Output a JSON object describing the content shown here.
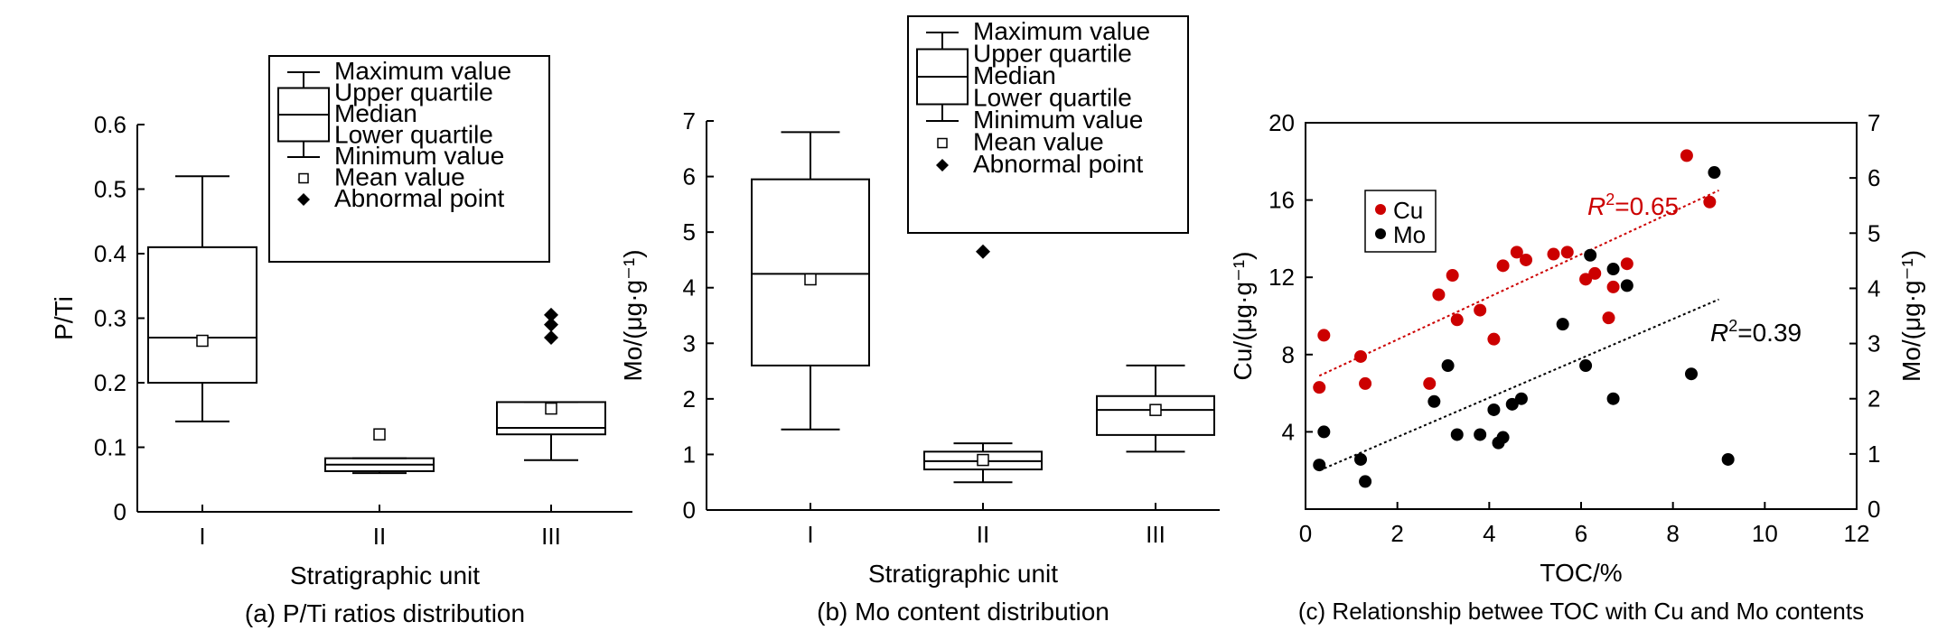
{
  "chart_data": [
    {
      "type": "box",
      "caption": "(a) P/Ti ratios distribution",
      "xlabel": "Stratigraphic unit",
      "ylabel": "P/Ti",
      "ylim": [
        0,
        0.6
      ],
      "yticks": [
        0,
        0.1,
        0.2,
        0.3,
        0.4,
        0.5,
        0.6
      ],
      "yticklabels": [
        "0",
        "0.1",
        "0.2",
        "0.3",
        "0.4",
        "0.5",
        "0.6"
      ],
      "categories": [
        "I",
        "II",
        "III"
      ],
      "boxes": [
        {
          "min": 0.14,
          "q1": 0.2,
          "median": 0.27,
          "q3": 0.41,
          "max": 0.52,
          "mean": 0.265,
          "outliers": []
        },
        {
          "min": 0.06,
          "q1": 0.063,
          "median": 0.073,
          "q3": 0.083,
          "max": 0.083,
          "mean": 0.12,
          "outliers": []
        },
        {
          "min": 0.08,
          "q1": 0.12,
          "median": 0.13,
          "q3": 0.17,
          "max": 0.17,
          "mean": 0.16,
          "outliers": [
            0.27,
            0.29,
            0.305
          ]
        }
      ],
      "legend": [
        "Maximum value",
        "Upper quartile",
        "Median",
        "Lower quartile",
        "Minimum value",
        "Mean value",
        "Abnormal point"
      ],
      "legend_position": "top-right"
    },
    {
      "type": "box",
      "caption": "(b) Mo content distribution",
      "xlabel": "Stratigraphic unit",
      "ylabel": "Mo/(μg·g⁻¹)",
      "ylim": [
        0,
        7
      ],
      "yticks": [
        0,
        1,
        2,
        3,
        4,
        5,
        6,
        7
      ],
      "yticklabels": [
        "0",
        "1",
        "2",
        "3",
        "4",
        "5",
        "6",
        "7"
      ],
      "categories": [
        "I",
        "II",
        "III"
      ],
      "boxes": [
        {
          "min": 1.45,
          "q1": 2.6,
          "median": 4.25,
          "q3": 5.95,
          "max": 6.8,
          "mean": 4.15,
          "outliers": []
        },
        {
          "min": 0.5,
          "q1": 0.73,
          "median": 0.88,
          "q3": 1.05,
          "max": 1.2,
          "mean": 0.9,
          "outliers": [
            4.65
          ]
        },
        {
          "min": 1.05,
          "q1": 1.35,
          "median": 1.8,
          "q3": 2.05,
          "max": 2.6,
          "mean": 1.8,
          "outliers": []
        }
      ],
      "legend": [
        "Maximum value",
        "Upper quartile",
        "Median",
        "Lower quartile",
        "Minimum value",
        "Mean value",
        "Abnormal point"
      ],
      "legend_position": "top-right"
    },
    {
      "type": "scatter",
      "caption": "(c) Relationship betwee TOC with Cu and Mo contents",
      "xlabel": "TOC/%",
      "ylabel": "Cu/(μg·g⁻¹)",
      "y2label": "Mo/(μg·g⁻¹)",
      "xlim": [
        0,
        12
      ],
      "xticks": [
        0,
        2,
        4,
        6,
        8,
        10,
        12
      ],
      "xticklabels": [
        "0",
        "2",
        "4",
        "6",
        "8",
        "10",
        "12"
      ],
      "ylim": [
        0,
        20
      ],
      "yticks": [
        4,
        8,
        12,
        16,
        20
      ],
      "yticklabels": [
        "4",
        "8",
        "12",
        "16",
        "20"
      ],
      "y2lim": [
        0,
        7
      ],
      "y2ticks": [
        0,
        1,
        2,
        3,
        4,
        5,
        6,
        7
      ],
      "y2ticklabels": [
        "0",
        "1",
        "2",
        "3",
        "4",
        "5",
        "6",
        "7"
      ],
      "legend_position": "top-left",
      "series": [
        {
          "name": "Cu",
          "axis": "left",
          "color": "#cc0000",
          "x": [
            0.3,
            0.4,
            1.2,
            1.3,
            2.7,
            2.9,
            3.2,
            3.3,
            3.8,
            4.1,
            4.3,
            4.6,
            4.8,
            5.4,
            5.7,
            6.1,
            6.3,
            6.6,
            6.7,
            7.0,
            8.3,
            8.8
          ],
          "y": [
            6.3,
            9.0,
            7.9,
            6.5,
            6.5,
            11.1,
            12.1,
            9.8,
            10.3,
            8.8,
            12.6,
            13.3,
            12.9,
            13.2,
            13.3,
            11.9,
            12.2,
            9.9,
            11.5,
            12.7,
            18.3,
            15.9
          ]
        },
        {
          "name": "Mo",
          "axis": "right",
          "color": "#000000",
          "x": [
            0.3,
            0.4,
            1.2,
            1.3,
            2.8,
            3.1,
            3.3,
            3.8,
            4.1,
            4.2,
            4.3,
            4.5,
            4.7,
            5.6,
            6.1,
            6.2,
            6.7,
            6.7,
            7.0,
            8.4,
            8.9,
            9.2
          ],
          "y": [
            0.8,
            1.4,
            0.9,
            0.5,
            1.95,
            2.6,
            1.35,
            1.35,
            1.8,
            1.2,
            1.3,
            1.9,
            2.0,
            3.35,
            2.6,
            4.6,
            4.35,
            2.0,
            4.05,
            2.45,
            6.1,
            0.9
          ]
        }
      ],
      "trendlines": [
        {
          "series": "Cu",
          "axis": "left",
          "x": [
            0.3,
            9.0
          ],
          "y": [
            6.9,
            16.5
          ],
          "color": "#cc0000",
          "r2_prefix": "R",
          "r2_sup": "2",
          "r2_value": "=0.65"
        },
        {
          "series": "Mo",
          "axis": "right",
          "x": [
            0.3,
            9.0
          ],
          "y": [
            0.7,
            3.8
          ],
          "color": "#000000",
          "r2_prefix": "R",
          "r2_sup": "2",
          "r2_value": "=0.39"
        }
      ]
    }
  ]
}
